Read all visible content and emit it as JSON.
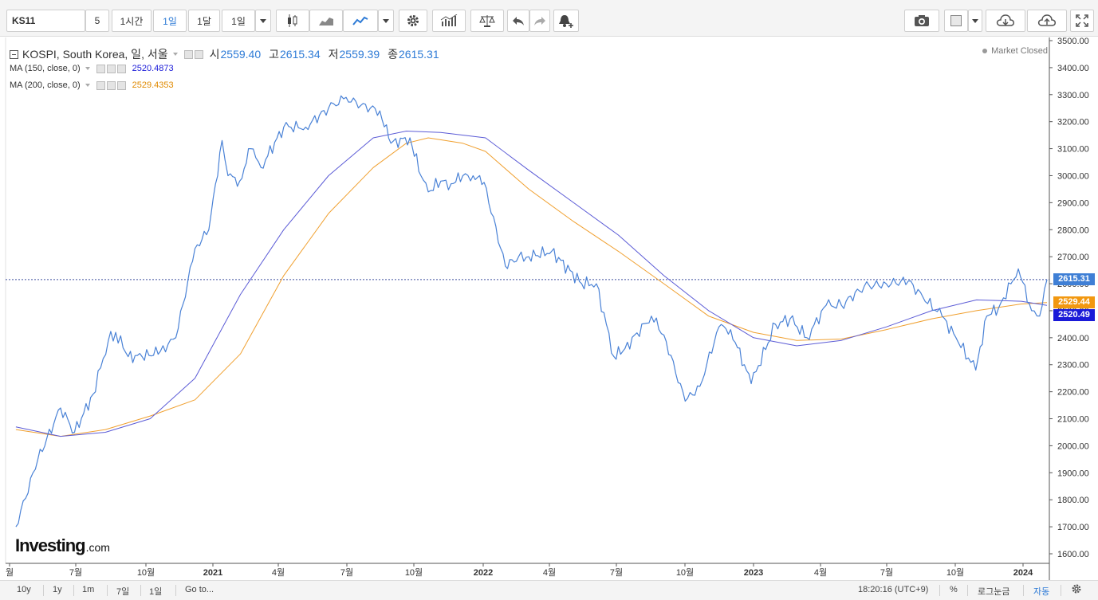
{
  "toolbar": {
    "symbol": "KS11",
    "interval_5": "5",
    "interval_1h": "1시간",
    "interval_1d": "1일",
    "interval_1mo": "1달",
    "range_value": "1일"
  },
  "legend": {
    "instrument": "KOSPI, South Korea, 일, 서울",
    "open_label": "시",
    "open_value": "2559.40",
    "high_label": "고",
    "high_value": "2615.34",
    "low_label": "저",
    "low_value": "2559.39",
    "close_label": "종",
    "close_value": "2615.31",
    "ma150_label": "MA (150, close, 0)",
    "ma150_value": "2520.4873",
    "ma200_label": "MA (200, close, 0)",
    "ma200_value": "2529.4353",
    "market_status": "Market Closed"
  },
  "price_tags": {
    "last": "2615.31",
    "ma200": "2529.44",
    "ma150": "2520.49"
  },
  "logo": {
    "brand": "Investing",
    "suffix": ".com"
  },
  "bottombar": {
    "range_10y": "10y",
    "range_1y": "1y",
    "range_1m": "1m",
    "range_7d": "7일",
    "range_1d": "1일",
    "goto": "Go to...",
    "time": "18:20:16 (UTC+9)",
    "percent": "%",
    "log": "로그눈금",
    "auto": "자동"
  },
  "colors": {
    "price_line": "#4a82d6",
    "ma150_line": "#5b5bd6",
    "ma200_line": "#f0a030",
    "ma150_tag": "#1a1ad8",
    "ma200_tag": "#f29810",
    "last_tag": "#3f7fd5"
  },
  "chart_data": {
    "type": "line",
    "title": "KOSPI, South Korea, 일, 서울",
    "y_axis_side": "right",
    "ylim": [
      1550,
      3510
    ],
    "yticks": [
      1600,
      1700,
      1800,
      1900,
      2000,
      2100,
      2200,
      2300,
      2400,
      2500,
      2600,
      2700,
      2800,
      2900,
      3000,
      3100,
      3200,
      3300,
      3400,
      3500
    ],
    "x_tick_labels": [
      "월",
      "7월",
      "10월",
      "2021",
      "4월",
      "7월",
      "10월",
      "2022",
      "4월",
      "7월",
      "10월",
      "2023",
      "4월",
      "7월",
      "10월",
      "2024"
    ],
    "last_price_line": 2615.31,
    "series": [
      {
        "name": "KOSPI",
        "x": [
          "2020-04-01",
          "2020-05-01",
          "2020-06-01",
          "2020-06-20",
          "2020-07-15",
          "2020-08-05",
          "2020-08-15",
          "2020-09-01",
          "2020-09-20",
          "2020-10-15",
          "2020-11-05",
          "2020-12-01",
          "2020-12-20",
          "2021-01-07",
          "2021-01-15",
          "2021-01-31",
          "2021-02-15",
          "2021-03-01",
          "2021-04-01",
          "2021-05-01",
          "2021-06-01",
          "2021-06-25",
          "2021-07-15",
          "2021-08-10",
          "2021-08-25",
          "2021-09-20",
          "2021-10-05",
          "2021-10-15",
          "2021-11-01",
          "2021-11-15",
          "2021-12-01",
          "2021-12-15",
          "2021-12-30",
          "2022-01-28",
          "2022-02-15",
          "2022-03-01",
          "2022-04-01",
          "2022-05-12",
          "2022-06-01",
          "2022-06-25",
          "2022-07-10",
          "2022-08-15",
          "2022-09-01",
          "2022-09-30",
          "2022-10-20",
          "2022-11-15",
          "2022-12-01",
          "2022-12-29",
          "2023-01-31",
          "2023-02-20",
          "2023-03-15",
          "2023-04-10",
          "2023-05-01",
          "2023-06-01",
          "2023-07-01",
          "2023-07-31",
          "2023-08-20",
          "2023-09-15",
          "2023-10-04",
          "2023-10-31",
          "2023-11-15",
          "2023-12-01",
          "2023-12-28",
          "2024-01-15",
          "2024-01-26",
          "2024-02-05"
        ],
        "values": [
          1700,
          1950,
          2140,
          2050,
          2190,
          2390,
          2420,
          2330,
          2330,
          2350,
          2400,
          2730,
          2800,
          3130,
          3000,
          2980,
          3100,
          3030,
          3180,
          3180,
          3250,
          3290,
          3260,
          3240,
          3120,
          3140,
          3000,
          2940,
          2980,
          2970,
          3000,
          3000,
          2975,
          2665,
          2700,
          2700,
          2720,
          2600,
          2600,
          2330,
          2360,
          2480,
          2410,
          2165,
          2220,
          2440,
          2430,
          2230,
          2450,
          2470,
          2400,
          2520,
          2520,
          2590,
          2600,
          2610,
          2550,
          2480,
          2400,
          2280,
          2480,
          2510,
          2655,
          2500,
          2480,
          2615
        ]
      },
      {
        "name": "MA (150, close, 0)",
        "x": [
          "2020-04-01",
          "2020-06-01",
          "2020-08-01",
          "2020-10-01",
          "2020-12-01",
          "2021-02-01",
          "2021-04-01",
          "2021-06-01",
          "2021-08-01",
          "2021-09-15",
          "2021-11-01",
          "2022-01-01",
          "2022-03-01",
          "2022-05-01",
          "2022-07-01",
          "2022-09-01",
          "2022-11-01",
          "2023-01-01",
          "2023-03-01",
          "2023-05-01",
          "2023-07-01",
          "2023-09-01",
          "2023-11-01",
          "2024-01-01",
          "2024-02-05"
        ],
        "values": [
          2070,
          2035,
          2050,
          2100,
          2250,
          2560,
          2800,
          3000,
          3140,
          3165,
          3160,
          3140,
          3020,
          2900,
          2780,
          2630,
          2500,
          2400,
          2370,
          2390,
          2440,
          2500,
          2540,
          2535,
          2520
        ]
      },
      {
        "name": "MA (200, close, 0)",
        "x": [
          "2020-04-01",
          "2020-06-01",
          "2020-08-01",
          "2020-10-01",
          "2020-12-01",
          "2021-02-01",
          "2021-04-01",
          "2021-06-01",
          "2021-08-01",
          "2021-09-15",
          "2021-10-15",
          "2021-12-01",
          "2022-01-01",
          "2022-03-01",
          "2022-05-01",
          "2022-07-01",
          "2022-09-01",
          "2022-11-01",
          "2023-01-01",
          "2023-03-01",
          "2023-05-01",
          "2023-07-01",
          "2023-09-01",
          "2023-11-01",
          "2024-01-01",
          "2024-02-05"
        ],
        "values": [
          2060,
          2035,
          2060,
          2110,
          2170,
          2340,
          2630,
          2860,
          3030,
          3120,
          3140,
          3120,
          3090,
          2950,
          2830,
          2720,
          2600,
          2480,
          2420,
          2390,
          2395,
          2430,
          2470,
          2500,
          2525,
          2530
        ]
      }
    ]
  }
}
